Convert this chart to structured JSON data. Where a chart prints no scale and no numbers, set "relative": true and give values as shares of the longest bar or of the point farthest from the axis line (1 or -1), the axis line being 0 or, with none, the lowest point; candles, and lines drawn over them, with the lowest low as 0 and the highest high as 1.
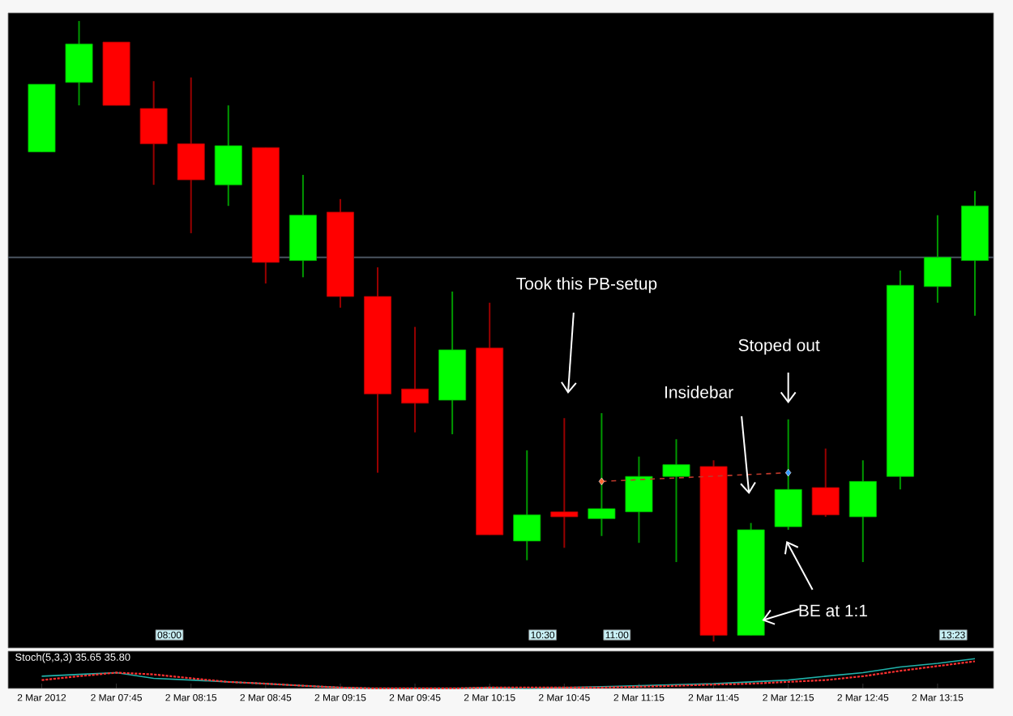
{
  "chart_data": [
    {
      "type": "candlestick",
      "relative": true,
      "tick_labels": false,
      "categories": [
        null,
        null,
        null,
        null,
        null,
        null,
        null,
        null,
        null,
        null,
        null,
        null,
        null,
        null,
        null,
        null,
        null,
        null,
        null,
        null,
        null,
        null,
        null,
        null,
        null,
        null
      ],
      "ohlc": [
        [
          0.789,
          0.898,
          0.789,
          0.898
        ],
        [
          0.901,
          1.0,
          0.864,
          0.963
        ],
        [
          0.966,
          0.966,
          0.864,
          0.864
        ],
        [
          0.859,
          0.903,
          0.736,
          0.802
        ],
        [
          0.802,
          0.909,
          0.658,
          0.744
        ],
        [
          0.736,
          0.864,
          0.702,
          0.799
        ],
        [
          0.796,
          0.796,
          0.577,
          0.611
        ],
        [
          0.614,
          0.752,
          0.587,
          0.687
        ],
        [
          0.692,
          0.713,
          0.538,
          0.556
        ],
        [
          0.556,
          0.603,
          0.272,
          0.399
        ],
        [
          0.407,
          0.507,
          0.337,
          0.384
        ],
        [
          0.389,
          0.564,
          0.334,
          0.47
        ],
        [
          0.473,
          0.546,
          0.172,
          0.172
        ],
        [
          0.162,
          0.308,
          0.131,
          0.204
        ],
        [
          0.209,
          0.36,
          0.151,
          0.201
        ],
        [
          0.198,
          0.368,
          0.17,
          0.214
        ],
        [
          0.209,
          0.298,
          0.159,
          0.266
        ],
        [
          0.266,
          0.326,
          0.128,
          0.285
        ],
        [
          0.282,
          0.292,
          0.0,
          0.01
        ],
        [
          0.01,
          0.191,
          0.01,
          0.18
        ],
        [
          0.185,
          0.358,
          0.18,
          0.245
        ],
        [
          0.248,
          0.311,
          0.201,
          0.204
        ],
        [
          0.201,
          0.292,
          0.128,
          0.258
        ],
        [
          0.266,
          0.598,
          0.245,
          0.574
        ],
        [
          0.572,
          0.687,
          0.546,
          0.619
        ],
        [
          0.614,
          0.726,
          0.525,
          0.702
        ]
      ],
      "colors": [
        "#00ff00",
        "#00ff00",
        "#ff0000",
        "#ff0000",
        "#ff0000",
        "#00ff00",
        "#ff0000",
        "#00ff00",
        "#ff0000",
        "#ff0000",
        "#ff0000",
        "#00ff00",
        "#ff0000",
        "#00ff00",
        "#ff0000",
        "#00ff00",
        "#00ff00",
        "#00ff00",
        "#ff0000",
        "#00ff00",
        "#00ff00",
        "#ff0000",
        "#00ff00",
        "#00ff00",
        "#00ff00",
        "#00ff00"
      ],
      "series": [
        {
          "type": "line",
          "color": "#c0392b",
          "line_style": "dashed",
          "marker": "diamond",
          "values": [
            null,
            null,
            null,
            null,
            null,
            null,
            null,
            null,
            null,
            null,
            null,
            null,
            null,
            null,
            null,
            0.258,
            null,
            null,
            null,
            null,
            0.272,
            null,
            null,
            null,
            null,
            null
          ],
          "colors": [
            null,
            null,
            null,
            null,
            null,
            null,
            null,
            null,
            null,
            null,
            null,
            null,
            null,
            null,
            null,
            "#ff6633",
            null,
            null,
            null,
            null,
            "#3399ff",
            null,
            null,
            null,
            null,
            null
          ]
        }
      ],
      "ref_lines": [
        {
          "axis": "y",
          "value": 0.619,
          "color": "#4a5560"
        }
      ],
      "annotations": [
        "Took this PB-setup",
        "Insidebar",
        "Stoped out",
        "BE at 1:1",
        "08:00",
        "10:30",
        "11:00",
        "13:23"
      ]
    },
    {
      "type": "line",
      "relative": true,
      "title": "Stoch(5,3,3) 35.65 35.80",
      "categories": [
        "2 Mar 2012",
        null,
        "2 Mar 07:45",
        null,
        "2 Mar 08:15",
        null,
        "2 Mar 08:45",
        null,
        "2 Mar 09:15",
        null,
        "2 Mar 09:45",
        null,
        "2 Mar 10:15",
        null,
        "2 Mar 10:45",
        null,
        "2 Mar 11:15",
        null,
        "2 Mar 11:45",
        null,
        "2 Mar 12:15",
        null,
        "2 Mar 12:45",
        null,
        "2 Mar 13:15",
        null
      ],
      "series": [
        {
          "color": "#20b2aa",
          "line_style": "solid",
          "values": [
            0.41,
            0.47,
            0.53,
            0.34,
            0.28,
            0.22,
            0.16,
            0.09,
            0.03,
            0,
            0,
            0,
            0.03,
            0,
            0.03,
            0.06,
            0.09,
            0.13,
            0.16,
            0.22,
            0.28,
            0.41,
            0.53,
            0.72,
            0.84,
            1
          ]
        },
        {
          "color": "#ff3030",
          "line_style": "dotted",
          "values": [
            0.28,
            0.41,
            0.53,
            0.47,
            0.34,
            0.22,
            0.16,
            0.09,
            0.03,
            0,
            0,
            0,
            0.03,
            0.03,
            0.03,
            0.03,
            0.06,
            0.09,
            0.13,
            0.16,
            0.22,
            0.28,
            0.41,
            0.59,
            0.75,
            0.91
          ]
        }
      ]
    }
  ]
}
